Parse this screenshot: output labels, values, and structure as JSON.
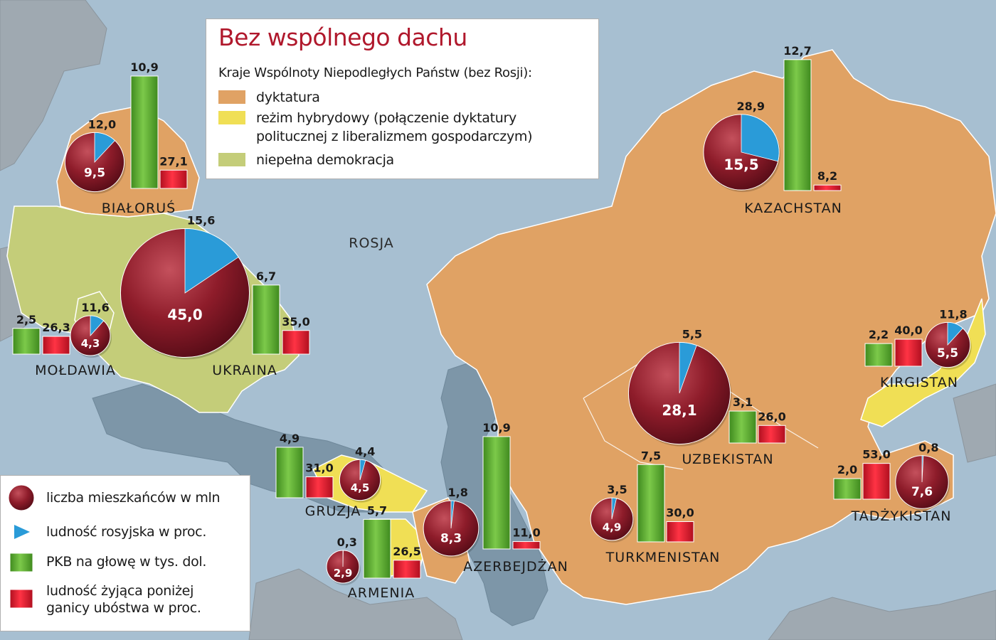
{
  "title": "Bez wspólnego dachu",
  "subtitle": "Kraje Wspólnoty Niepodległych Państw (bez Rosji):",
  "regime_legend": [
    {
      "label": "dyktatura",
      "color": "#e0a264"
    },
    {
      "label": "reżim hybrydowy (połączenie dyktatury",
      "label2": "politucznej z liberalizmem gospodarczym)",
      "color": "#f0df55"
    },
    {
      "label": "niepełna demokracja",
      "color": "#c4cd79"
    }
  ],
  "indicator_legend": [
    {
      "label": "liczba mieszkańców w mln",
      "icon": "population-bubble-icon"
    },
    {
      "label": "ludność rosyjska w proc.",
      "icon": "russian-share-wedge-icon"
    },
    {
      "label": "PKB na głowę w tys. dol.",
      "icon": "gdp-bar-icon"
    },
    {
      "label": "ludność żyjąca poniżej",
      "label2": "ganicy ubóstwa w proc.",
      "icon": "poverty-bar-icon"
    }
  ],
  "region_label": "ROSJA",
  "colors": {
    "population": "#8e1c2a",
    "russian": "#2a9bd8",
    "gdp": "#57aa2d",
    "poverty": "#e0172a",
    "dictatorship": "#e0a264",
    "hybrid": "#f0df55",
    "democracy": "#c4cd79",
    "water": "#a7bfd1"
  },
  "countries": [
    {
      "name": "BIAŁORUŚ",
      "population": 9.5,
      "population_label": "9,5",
      "russian_pct": 12.0,
      "russian_label": "12,0",
      "gdp": 10.9,
      "gdp_label": "10,9",
      "poverty": 27.1,
      "poverty_label": "27,1"
    },
    {
      "name": "UKRAINA",
      "population": 45.0,
      "population_label": "45,0",
      "russian_pct": 15.6,
      "russian_label": "15,6",
      "gdp": 6.7,
      "gdp_label": "6,7",
      "poverty": 35.0,
      "poverty_label": "35,0"
    },
    {
      "name": "MOŁDAWIA",
      "population": 4.3,
      "population_label": "4,3",
      "russian_pct": 11.6,
      "russian_label": "11,6",
      "gdp": 2.5,
      "gdp_label": "2,5",
      "poverty": 26.3,
      "poverty_label": "26,3"
    },
    {
      "name": "KAZACHSTAN",
      "population": 15.5,
      "population_label": "15,5",
      "russian_pct": 28.9,
      "russian_label": "28,9",
      "gdp": 12.7,
      "gdp_label": "12,7",
      "poverty": 8.2,
      "poverty_label": "8,2"
    },
    {
      "name": "KIRGISTAN",
      "population": 5.5,
      "population_label": "5,5",
      "russian_pct": 11.8,
      "russian_label": "11,8",
      "gdp": 2.2,
      "gdp_label": "2,2",
      "poverty": 40.0,
      "poverty_label": "40,0"
    },
    {
      "name": "UZBEKISTAN",
      "population": 28.1,
      "population_label": "28,1",
      "russian_pct": 5.5,
      "russian_label": "5,5",
      "gdp": 3.1,
      "gdp_label": "3,1",
      "poverty": 26.0,
      "poverty_label": "26,0"
    },
    {
      "name": "TADŻYKISTAN",
      "population": 7.6,
      "population_label": "7,6",
      "russian_pct": 0.8,
      "russian_label": "0,8",
      "gdp": 2.0,
      "gdp_label": "2,0",
      "poverty": 53.0,
      "poverty_label": "53,0"
    },
    {
      "name": "TURKMENISTAN",
      "population": 4.9,
      "population_label": "4,9",
      "russian_pct": 3.5,
      "russian_label": "3,5",
      "gdp": 7.5,
      "gdp_label": "7,5",
      "poverty": 30.0,
      "poverty_label": "30,0"
    },
    {
      "name": "GRUZJA",
      "population": 4.5,
      "population_label": "4,5",
      "russian_pct": 4.4,
      "russian_label": "4,4",
      "gdp": 4.9,
      "gdp_label": "4,9",
      "poverty": 31.0,
      "poverty_label": "31,0"
    },
    {
      "name": "ARMENIA",
      "population": 2.9,
      "population_label": "2,9",
      "russian_pct": 0.3,
      "russian_label": "0,3",
      "gdp": 5.7,
      "gdp_label": "5,7",
      "poverty": 26.5,
      "poverty_label": "26,5"
    },
    {
      "name": "AZERBEJDŻAN",
      "population": 8.3,
      "population_label": "8,3",
      "russian_pct": 1.8,
      "russian_label": "1,8",
      "gdp": 10.9,
      "gdp_label": "10,9",
      "poverty": 11.0,
      "poverty_label": "11,0"
    }
  ]
}
